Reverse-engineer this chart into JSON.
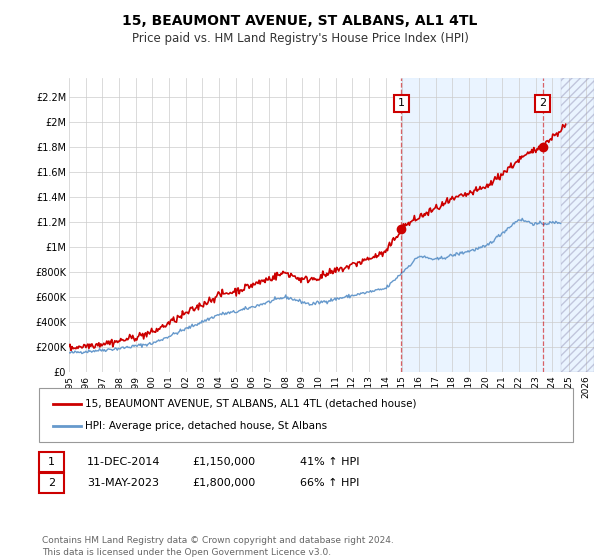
{
  "title": "15, BEAUMONT AVENUE, ST ALBANS, AL1 4TL",
  "subtitle": "Price paid vs. HM Land Registry's House Price Index (HPI)",
  "ylabel_ticks": [
    "£0",
    "£200K",
    "£400K",
    "£600K",
    "£800K",
    "£1M",
    "£1.2M",
    "£1.4M",
    "£1.6M",
    "£1.8M",
    "£2M",
    "£2.2M"
  ],
  "ytick_values": [
    0,
    200000,
    400000,
    600000,
    800000,
    1000000,
    1200000,
    1400000,
    1600000,
    1800000,
    2000000,
    2200000
  ],
  "ylim": [
    0,
    2350000
  ],
  "xlim_start": 1995.0,
  "xlim_end": 2026.5,
  "xtick_years": [
    1995,
    1996,
    1997,
    1998,
    1999,
    2000,
    2001,
    2002,
    2003,
    2004,
    2005,
    2006,
    2007,
    2008,
    2009,
    2010,
    2011,
    2012,
    2013,
    2014,
    2015,
    2016,
    2017,
    2018,
    2019,
    2020,
    2021,
    2022,
    2023,
    2024,
    2025,
    2026
  ],
  "red_line_color": "#cc0000",
  "blue_line_color": "#6699cc",
  "marker1_x": 2014.95,
  "marker1_y": 1150000,
  "marker2_x": 2023.42,
  "marker2_y": 1800000,
  "vline1_x": 2014.95,
  "vline2_x": 2023.42,
  "shade_start": 2014.95,
  "shade_end": 2026.5,
  "hatch_start": 2024.5,
  "annotation1": "1",
  "annotation2": "2",
  "legend_entry1": "15, BEAUMONT AVENUE, ST ALBANS, AL1 4TL (detached house)",
  "legend_entry2": "HPI: Average price, detached house, St Albans",
  "table_row1_num": "1",
  "table_row1_date": "11-DEC-2014",
  "table_row1_price": "£1,150,000",
  "table_row1_hpi": "41% ↑ HPI",
  "table_row2_num": "2",
  "table_row2_date": "31-MAY-2023",
  "table_row2_price": "£1,800,000",
  "table_row2_hpi": "66% ↑ HPI",
  "footer": "Contains HM Land Registry data © Crown copyright and database right 2024.\nThis data is licensed under the Open Government Licence v3.0.",
  "bg_color": "#ffffff",
  "plot_bg_color": "#ffffff",
  "shade_color": "#ddeeff",
  "grid_color": "#cccccc"
}
